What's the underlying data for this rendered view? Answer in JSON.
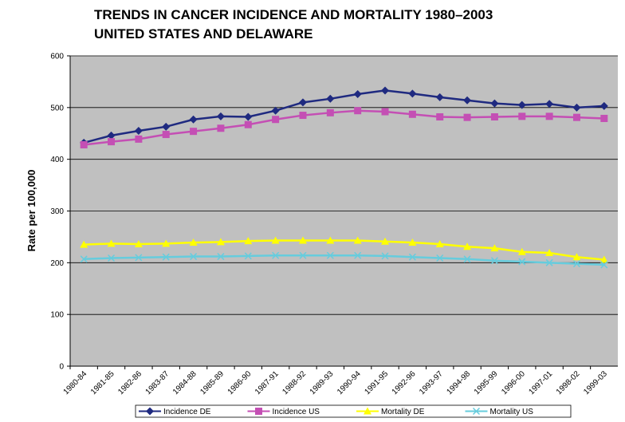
{
  "chart_data": {
    "type": "line",
    "title": [
      "TRENDS IN CANCER INCIDENCE AND MORTALITY 1980–2003",
      "UNITED STATES AND DELAWARE"
    ],
    "y_label": "Rate per 100,000",
    "categories": [
      "1980-84",
      "1981-85",
      "1982-86",
      "1983-87",
      "1984-88",
      "1985-89",
      "1986-90",
      "1987-91",
      "1988-92",
      "1989-93",
      "1990-94",
      "1991-95",
      "1992-96",
      "1993-97",
      "1994-98",
      "1995-99",
      "1996-00",
      "1997-01",
      "1998-02",
      "1999-03"
    ],
    "series": [
      {
        "name": "Incidence DE",
        "color": "#1f2a80",
        "marker": "diamond",
        "values": [
          432,
          446,
          455,
          463,
          477,
          483,
          482,
          494,
          510,
          517,
          526,
          533,
          527,
          520,
          514,
          508,
          505,
          507,
          500,
          503
        ]
      },
      {
        "name": "Incidence US",
        "color": "#c44fb4",
        "marker": "square",
        "values": [
          428,
          434,
          439,
          448,
          454,
          460,
          467,
          477,
          485,
          490,
          494,
          492,
          487,
          482,
          481,
          482,
          483,
          483,
          481,
          479
        ]
      },
      {
        "name": "Mortality DE",
        "color": "#ffff00",
        "marker": "triangle",
        "values": [
          235,
          237,
          236,
          237,
          239,
          240,
          242,
          243,
          243,
          243,
          243,
          241,
          239,
          236,
          231,
          228,
          221,
          219,
          211,
          206
        ]
      },
      {
        "name": "Mortality US",
        "color": "#66ccdd",
        "marker": "x",
        "values": [
          207,
          209,
          210,
          211,
          212,
          212,
          213,
          214,
          214,
          214,
          214,
          213,
          211,
          209,
          207,
          204,
          202,
          200,
          198,
          196
        ]
      }
    ],
    "ylim": [
      0,
      600
    ],
    "yticks": [
      0,
      100,
      200,
      300,
      400,
      500,
      600
    ],
    "grid": true,
    "plot_background": "#c0c0c0"
  }
}
